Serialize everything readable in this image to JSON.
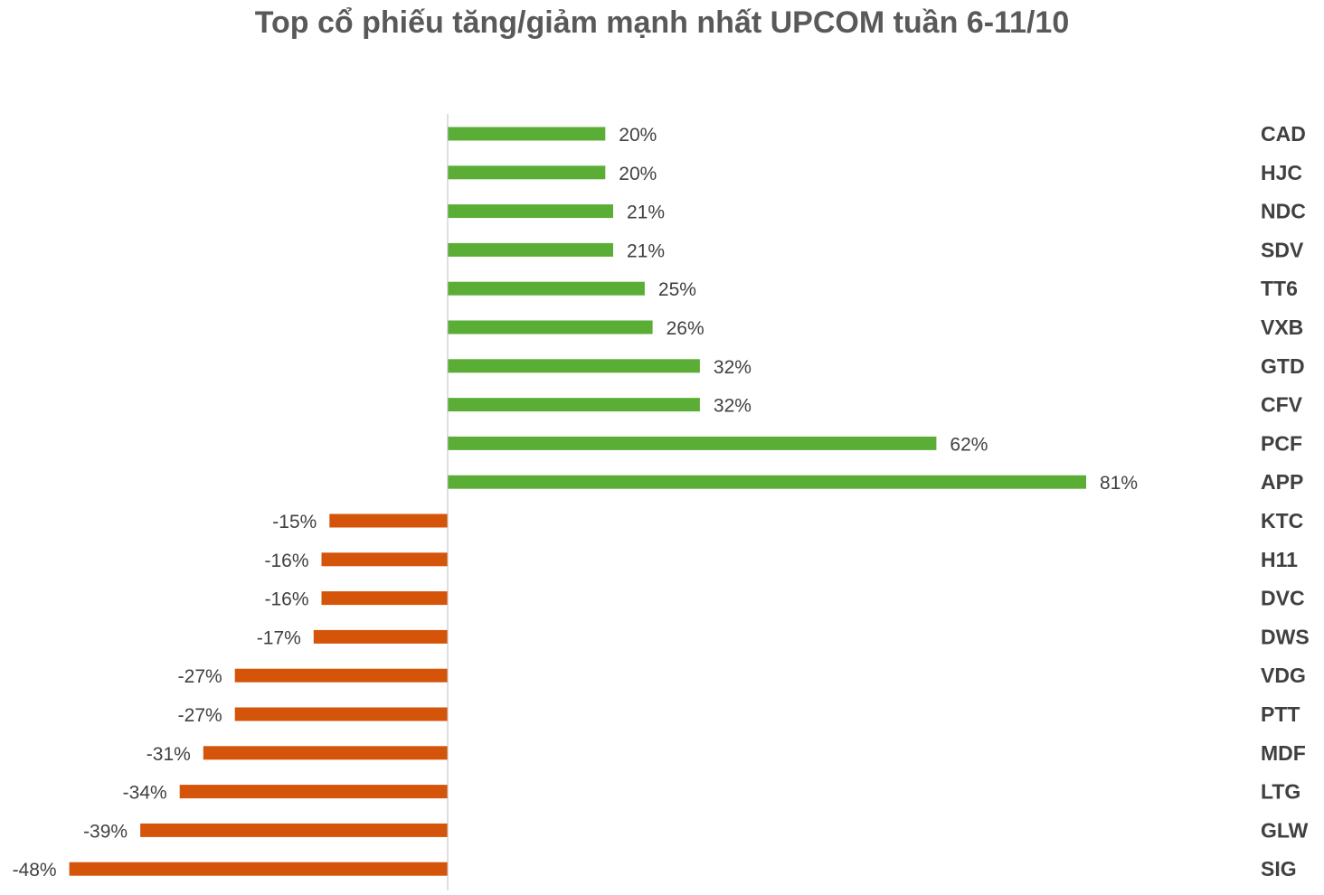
{
  "chart_data": {
    "type": "bar",
    "orientation": "horizontal",
    "title": "Top cổ phiếu tăng/giảm mạnh nhất UPCOM tuần 6-11/10",
    "xlabel": "",
    "ylabel": "",
    "value_format": "percent",
    "xlim": [
      -48,
      81
    ],
    "grid": false,
    "legend": "none",
    "categories": [
      "CAD",
      "HJC",
      "NDC",
      "SDV",
      "TT6",
      "VXB",
      "GTD",
      "CFV",
      "PCF",
      "APP",
      "KTC",
      "H11",
      "DVC",
      "DWS",
      "VDG",
      "PTT",
      "MDF",
      "LTG",
      "GLW",
      "SIG"
    ],
    "values": [
      20,
      20,
      21,
      21,
      25,
      26,
      32,
      32,
      62,
      81,
      -15,
      -16,
      -16,
      -17,
      -27,
      -27,
      -31,
      -34,
      -39,
      -48
    ],
    "data_labels": [
      "20%",
      "20%",
      "21%",
      "21%",
      "25%",
      "26%",
      "32%",
      "32%",
      "62%",
      "81%",
      "-15%",
      "-16%",
      "-16%",
      "-17%",
      "-27%",
      "-27%",
      "-31%",
      "-34%",
      "-39%",
      "-48%"
    ],
    "colors": {
      "positive": "#5BAE35",
      "negative": "#D4540A",
      "axis": "#BFBFBF",
      "text": "#404040",
      "title": "#595959"
    }
  }
}
